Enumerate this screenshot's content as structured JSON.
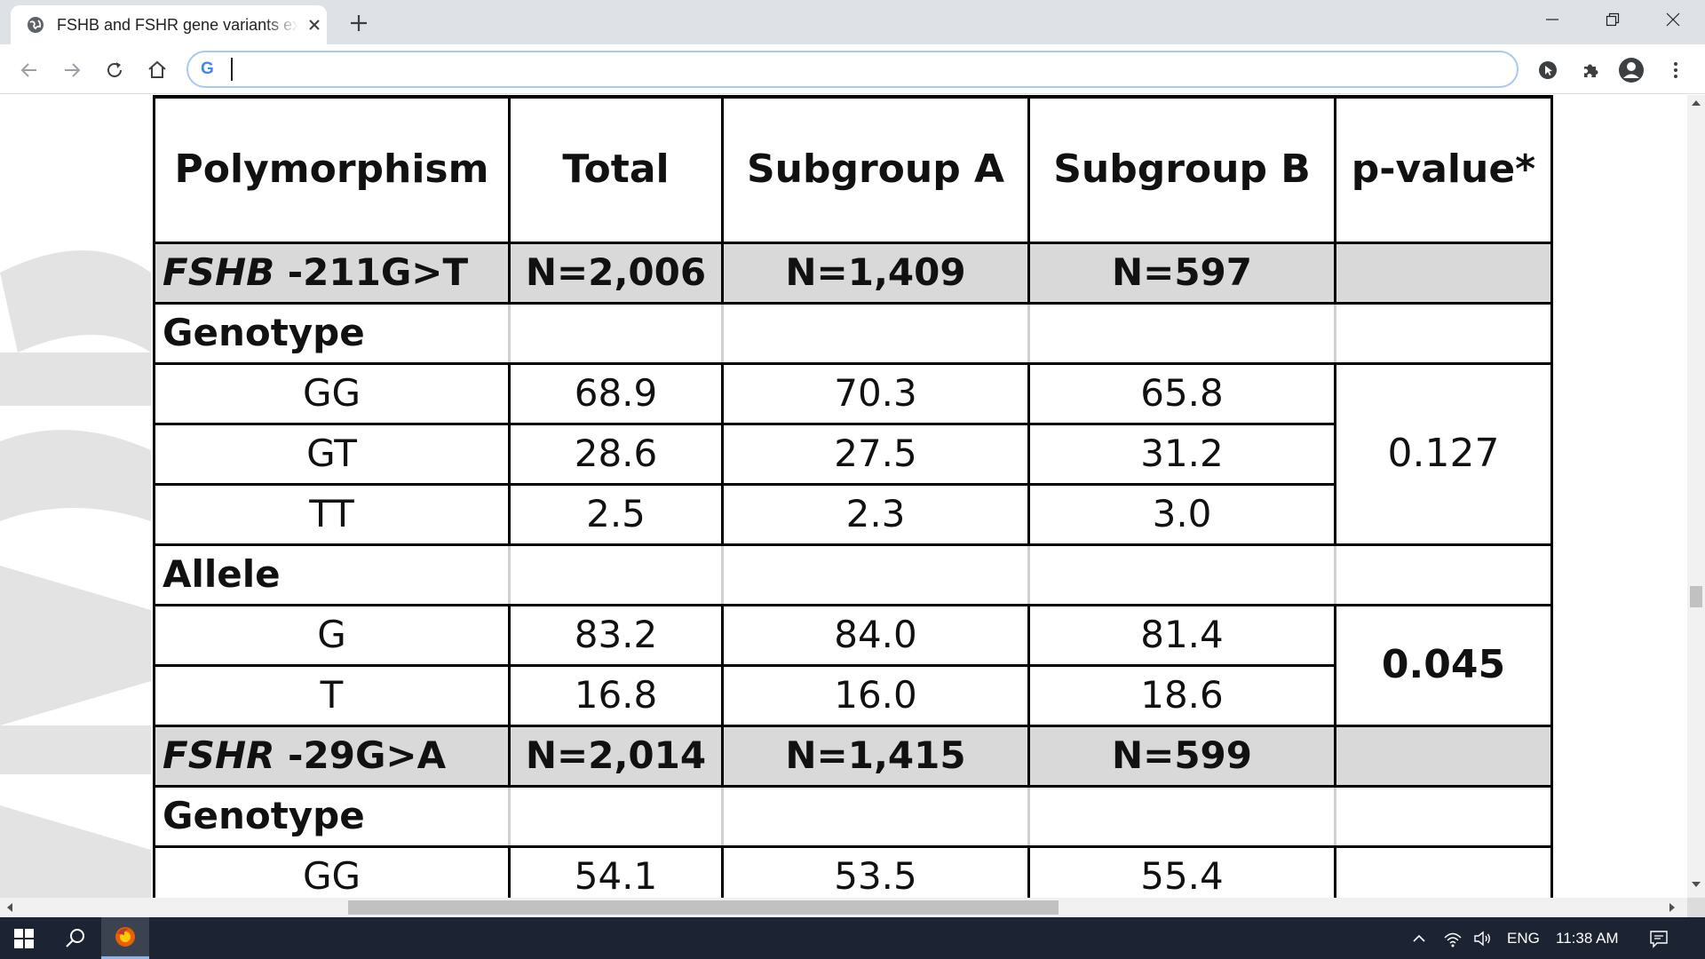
{
  "browser": {
    "tab_title": "FSHB and FSHR gene variants ex",
    "address_value": "",
    "omnibox_glyph": "G"
  },
  "table": {
    "headers": [
      "Polymorphism",
      "Total",
      "Subgroup A",
      "Subgroup B",
      "p-value*"
    ],
    "sections": [
      {
        "locus_gene": "FSHB",
        "locus_variant": " -211G>T",
        "n_total": "N=2,006",
        "n_a": "N=1,409",
        "n_b": "N=597",
        "groups": [
          {
            "label": "Genotype",
            "pvalue": "0.127",
            "pvalue_bold": false,
            "rows": [
              {
                "name": "GG",
                "total": "68.9",
                "a": "70.3",
                "b": "65.8"
              },
              {
                "name": "GT",
                "total": "28.6",
                "a": "27.5",
                "b": "31.2"
              },
              {
                "name": "TT",
                "total": "2.5",
                "a": "2.3",
                "b": "3.0"
              }
            ]
          },
          {
            "label": "Allele",
            "pvalue": "0.045",
            "pvalue_bold": true,
            "rows": [
              {
                "name": "G",
                "total": "83.2",
                "a": "84.0",
                "b": "81.4"
              },
              {
                "name": "T",
                "total": "16.8",
                "a": "16.0",
                "b": "18.6"
              }
            ]
          }
        ]
      },
      {
        "locus_gene": "FSHR",
        "locus_variant": " -29G>A",
        "n_total": "N=2,014",
        "n_a": "N=1,415",
        "n_b": "N=599",
        "groups": [
          {
            "label": "Genotype",
            "pvalue": "",
            "pvalue_bold": false,
            "rows": [
              {
                "name": "GG",
                "total": "54.1",
                "a": "53.5",
                "b": "55.4"
              }
            ]
          }
        ]
      }
    ]
  },
  "scroll": {
    "vertical_fraction": 0.62,
    "horizontal_start": 0.2,
    "horizontal_span": 0.43
  },
  "taskbar": {
    "language": "ENG",
    "time": "11:38 AM"
  },
  "icons": [
    "globe-icon",
    "close-icon",
    "plus-icon",
    "minimize-icon",
    "restore-icon",
    "back-icon",
    "forward-icon",
    "reload-icon",
    "home-icon",
    "google-icon",
    "cursor-extension-icon",
    "puzzle-icon",
    "profile-icon",
    "kebab-menu-icon",
    "windows-icon",
    "search-icon",
    "firefox-icon",
    "chevron-up-icon",
    "network-icon",
    "volume-icon",
    "notification-icon"
  ],
  "colors": {
    "tabstrip": "#dee1e6",
    "section_row": "#d9d9d9",
    "omnibox_focus": "#a8c7fa",
    "taskbar": "#1c2433"
  }
}
